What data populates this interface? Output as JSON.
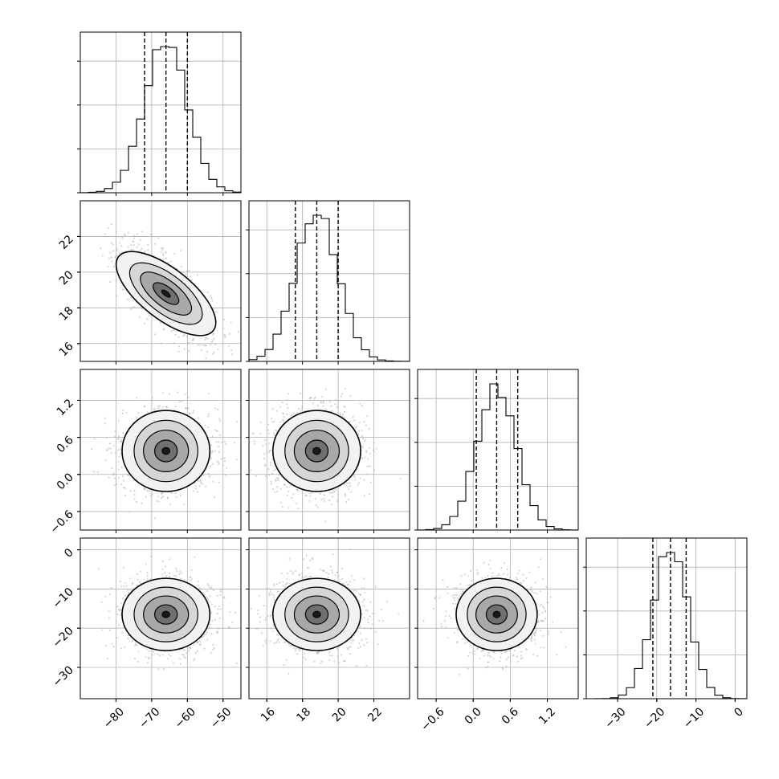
{
  "chart_data": {
    "type": "corner",
    "n_params": 4,
    "grid": true,
    "quantiles_marked": [
      0.16,
      0.5,
      0.84
    ],
    "colors": {
      "line": "#000000",
      "grid": "#b0b0b0",
      "scatter": "#b3b3b3"
    },
    "parameters": [
      {
        "index": 0,
        "range": [
          -90,
          -45
        ],
        "mean": -66,
        "sd": 6.0,
        "quantiles": [
          -72,
          -66,
          -60
        ],
        "ticks": [
          {
            "v": -80,
            "label": "−80"
          },
          {
            "v": -70,
            "label": "−70"
          },
          {
            "v": -60,
            "label": "−60"
          },
          {
            "v": -50,
            "label": "−50"
          }
        ]
      },
      {
        "index": 1,
        "range": [
          15,
          24
        ],
        "mean": 18.8,
        "sd": 1.2,
        "quantiles": [
          17.6,
          18.8,
          20.0
        ],
        "ticks": [
          {
            "v": 16,
            "label": "16"
          },
          {
            "v": 18,
            "label": "18"
          },
          {
            "v": 20,
            "label": "20"
          },
          {
            "v": 22,
            "label": "22"
          }
        ]
      },
      {
        "index": 2,
        "range": [
          -0.9,
          1.7
        ],
        "mean": 0.38,
        "sd": 0.32,
        "quantiles": [
          0.05,
          0.38,
          0.72
        ],
        "ticks": [
          {
            "v": -0.6,
            "label": "−0.6"
          },
          {
            "v": 0.0,
            "label": "0.0"
          },
          {
            "v": 0.6,
            "label": "0.6"
          },
          {
            "v": 1.2,
            "label": "1.2"
          }
        ]
      },
      {
        "index": 3,
        "range": [
          -38,
          3
        ],
        "mean": -16.5,
        "sd": 4.5,
        "quantiles": [
          -21,
          -16.5,
          -12.5
        ],
        "ticks": [
          {
            "v": -30,
            "label": "−30"
          },
          {
            "v": -20,
            "label": "−20"
          },
          {
            "v": -10,
            "label": "−10"
          },
          {
            "v": 0,
            "label": "0"
          }
        ]
      }
    ],
    "correlations": [
      {
        "pair": [
          1,
          0
        ],
        "rho": -0.7
      },
      {
        "pair": [
          2,
          0
        ],
        "rho": 0.0
      },
      {
        "pair": [
          2,
          1
        ],
        "rho": 0.0
      },
      {
        "pair": [
          3,
          0
        ],
        "rho": 0.0
      },
      {
        "pair": [
          3,
          1
        ],
        "rho": 0.0
      },
      {
        "pair": [
          3,
          2
        ],
        "rho": 0.0
      }
    ]
  }
}
